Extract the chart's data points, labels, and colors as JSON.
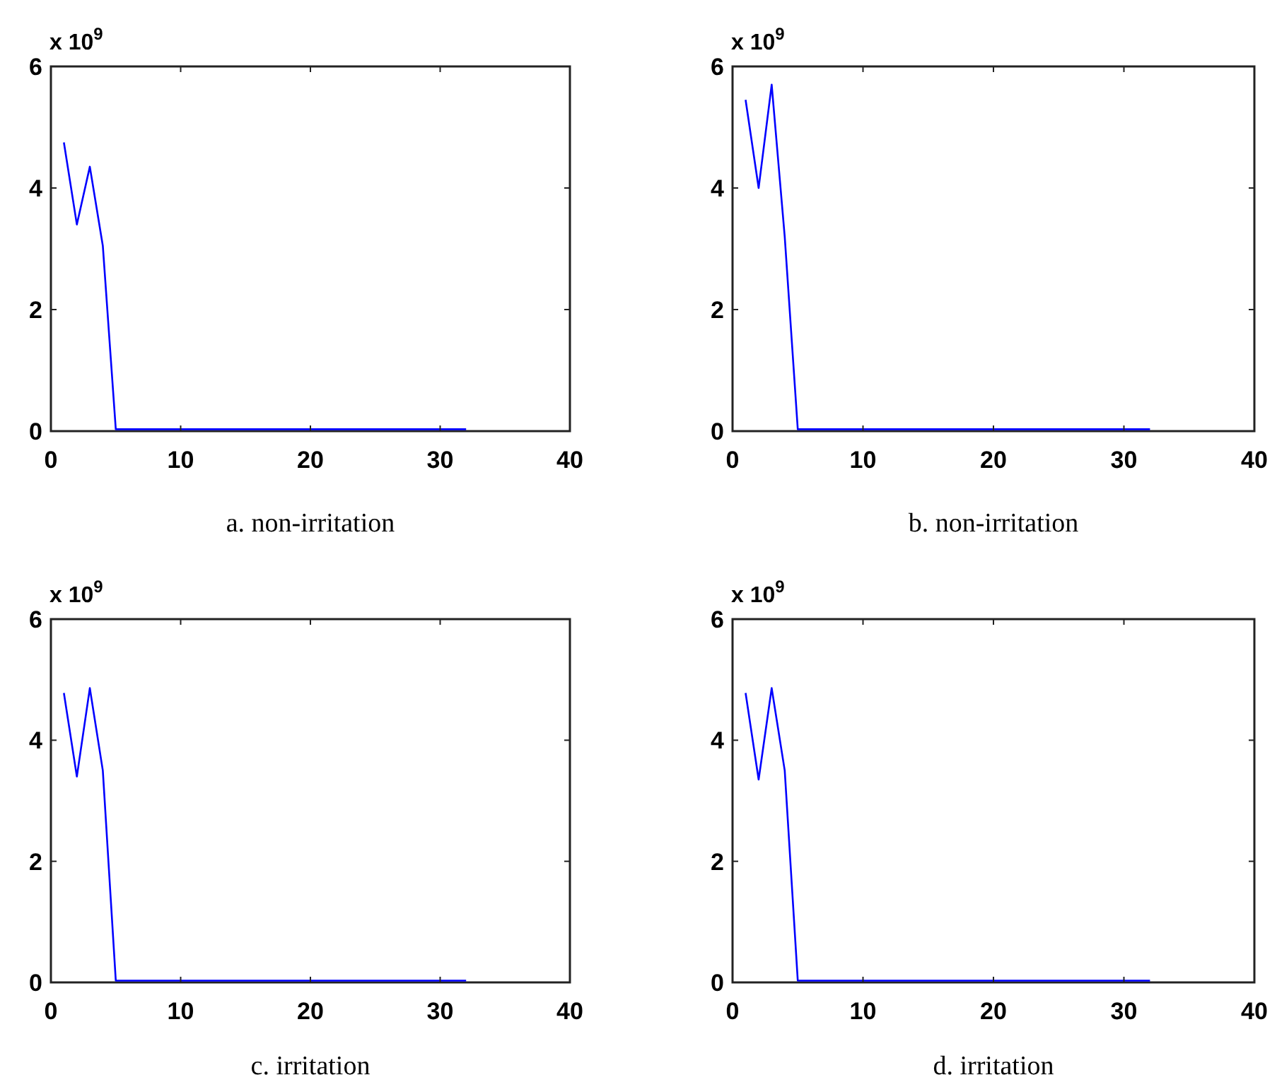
{
  "chart_data": [
    {
      "type": "line",
      "title": "a. non-irritation",
      "ylabel": "x 10$^{9}$",
      "x": [
        1,
        2,
        3,
        4,
        5,
        6,
        7,
        8,
        9,
        10,
        11,
        12,
        13,
        14,
        15,
        16,
        17,
        18,
        19,
        20,
        21,
        22,
        23,
        24,
        25,
        26,
        27,
        28,
        29,
        30,
        31,
        32
      ],
      "series": [
        {
          "color": "#0000ff",
          "values": [
            4.75,
            3.4,
            4.35,
            3.05,
            0.03,
            0.03,
            0.03,
            0.03,
            0.03,
            0.03,
            0.03,
            0.03,
            0.03,
            0.03,
            0.03,
            0.03,
            0.03,
            0.03,
            0.03,
            0.03,
            0.03,
            0.03,
            0.03,
            0.03,
            0.03,
            0.03,
            0.03,
            0.03,
            0.03,
            0.03,
            0.03,
            0.03
          ]
        }
      ],
      "xlim": [
        0,
        40
      ],
      "xticks": [
        0,
        10,
        20,
        30,
        40
      ],
      "ylim": [
        0,
        6
      ],
      "yticks": [
        0,
        2,
        4,
        6
      ]
    },
    {
      "type": "line",
      "title": "b. non-irritation",
      "ylabel": "x 10$^{9}$",
      "x": [
        1,
        2,
        3,
        4,
        5,
        6,
        7,
        8,
        9,
        10,
        11,
        12,
        13,
        14,
        15,
        16,
        17,
        18,
        19,
        20,
        21,
        22,
        23,
        24,
        25,
        26,
        27,
        28,
        29,
        30,
        31,
        32
      ],
      "series": [
        {
          "color": "#0000ff",
          "values": [
            5.45,
            4.0,
            5.7,
            3.2,
            0.03,
            0.03,
            0.03,
            0.03,
            0.03,
            0.03,
            0.03,
            0.03,
            0.03,
            0.03,
            0.03,
            0.03,
            0.03,
            0.03,
            0.03,
            0.03,
            0.03,
            0.03,
            0.03,
            0.03,
            0.03,
            0.03,
            0.03,
            0.03,
            0.03,
            0.03,
            0.03,
            0.03
          ]
        }
      ],
      "xlim": [
        0,
        40
      ],
      "xticks": [
        0,
        10,
        20,
        30,
        40
      ],
      "ylim": [
        0,
        6
      ],
      "yticks": [
        0,
        2,
        4,
        6
      ]
    },
    {
      "type": "line",
      "title": "c.  irritation",
      "ylabel": "x 10$^{9}$",
      "x": [
        1,
        2,
        3,
        4,
        5,
        6,
        7,
        8,
        9,
        10,
        11,
        12,
        13,
        14,
        15,
        16,
        17,
        18,
        19,
        20,
        21,
        22,
        23,
        24,
        25,
        26,
        27,
        28,
        29,
        30,
        31,
        32
      ],
      "series": [
        {
          "color": "#0000ff",
          "values": [
            4.78,
            3.4,
            4.86,
            3.5,
            0.03,
            0.03,
            0.03,
            0.03,
            0.03,
            0.03,
            0.03,
            0.03,
            0.03,
            0.03,
            0.03,
            0.03,
            0.03,
            0.03,
            0.03,
            0.03,
            0.03,
            0.03,
            0.03,
            0.03,
            0.03,
            0.03,
            0.03,
            0.03,
            0.03,
            0.03,
            0.03,
            0.03
          ]
        }
      ],
      "xlim": [
        0,
        40
      ],
      "xticks": [
        0,
        10,
        20,
        30,
        40
      ],
      "ylim": [
        0,
        6
      ],
      "yticks": [
        0,
        2,
        4,
        6
      ]
    },
    {
      "type": "line",
      "title": "d.  irritation",
      "ylabel": "x 10$^{9}$",
      "x": [
        1,
        2,
        3,
        4,
        5,
        6,
        7,
        8,
        9,
        10,
        11,
        12,
        13,
        14,
        15,
        16,
        17,
        18,
        19,
        20,
        21,
        22,
        23,
        24,
        25,
        26,
        27,
        28,
        29,
        30,
        31,
        32
      ],
      "series": [
        {
          "color": "#0000ff",
          "values": [
            4.78,
            3.35,
            4.86,
            3.5,
            0.03,
            0.03,
            0.03,
            0.03,
            0.03,
            0.03,
            0.03,
            0.03,
            0.03,
            0.03,
            0.03,
            0.03,
            0.03,
            0.03,
            0.03,
            0.03,
            0.03,
            0.03,
            0.03,
            0.03,
            0.03,
            0.03,
            0.03,
            0.03,
            0.03,
            0.03,
            0.03,
            0.03
          ]
        }
      ],
      "xlim": [
        0,
        40
      ],
      "xticks": [
        0,
        10,
        20,
        30,
        40
      ],
      "ylim": [
        0,
        6
      ],
      "yticks": [
        0,
        2,
        4,
        6
      ]
    }
  ]
}
